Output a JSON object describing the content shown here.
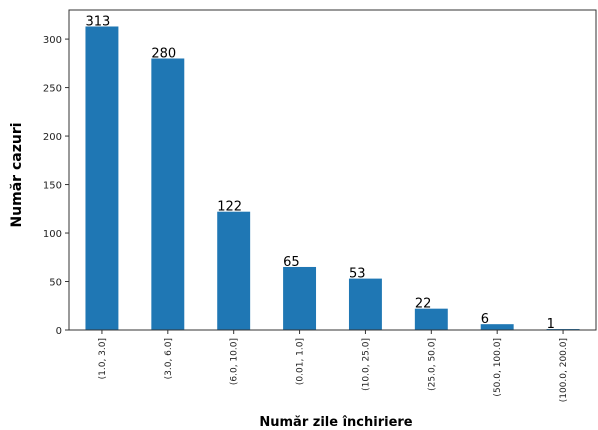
{
  "chart_data": {
    "type": "bar",
    "categories": [
      "(1.0, 3.0]",
      "(3.0, 6.0]",
      "(6.0, 10.0]",
      "(0.01, 1.0]",
      "(10.0, 25.0]",
      "(25.0, 50.0]",
      "(50.0, 100.0]",
      "(100.0, 200.0]"
    ],
    "values": [
      313,
      280,
      122,
      65,
      53,
      22,
      6,
      1
    ],
    "xlabel": "Număr zile închiriere",
    "ylabel": "Număr cazuri",
    "ylim": [
      0,
      330
    ],
    "yticks": [
      0,
      50,
      100,
      150,
      200,
      250,
      300
    ],
    "bar_color": "#1f77b4",
    "grid": false,
    "legend": "none"
  }
}
